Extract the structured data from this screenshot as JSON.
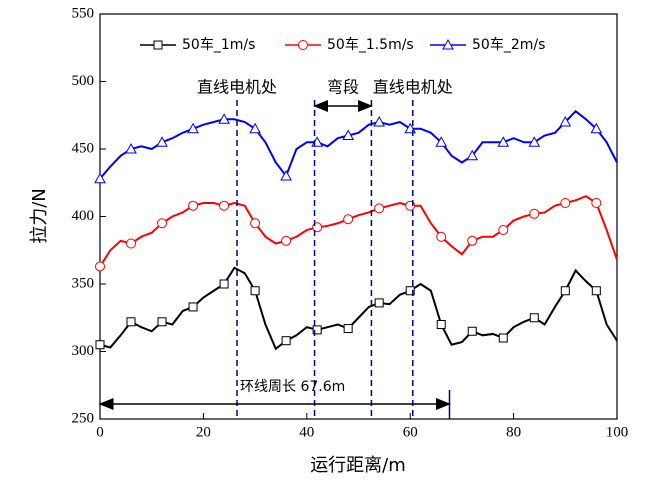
{
  "chart_data": {
    "type": "line",
    "xlabel": "运行距离/m",
    "ylabel": "拉力/N",
    "x": [
      0,
      2,
      4,
      6,
      8,
      10,
      12,
      14,
      16,
      18,
      20,
      22,
      24,
      26,
      28,
      30,
      32,
      34,
      36,
      38,
      40,
      42,
      44,
      46,
      48,
      50,
      52,
      54,
      56,
      58,
      60,
      62,
      64,
      66,
      68,
      70,
      72,
      74,
      76,
      78,
      80,
      82,
      84,
      86,
      88,
      90,
      92,
      94,
      96,
      98,
      100
    ],
    "series": [
      {
        "name": "50车_1m/s",
        "color": "#000000",
        "marker": "square",
        "values": [
          305,
          303,
          312,
          322,
          318,
          315,
          322,
          320,
          330,
          333,
          340,
          345,
          350,
          362,
          358,
          345,
          320,
          302,
          308,
          312,
          318,
          316,
          318,
          320,
          317,
          325,
          333,
          336,
          335,
          342,
          345,
          350,
          345,
          320,
          305,
          307,
          315,
          312,
          313,
          310,
          318,
          322,
          325,
          320,
          333,
          345,
          360,
          352,
          345,
          320,
          308
        ]
      },
      {
        "name": "50车_1.5m/s",
        "color": "#ff0000",
        "marker": "circle",
        "values": [
          363,
          375,
          382,
          380,
          385,
          388,
          395,
          400,
          403,
          408,
          410,
          410,
          408,
          410,
          408,
          395,
          385,
          380,
          382,
          385,
          390,
          392,
          393,
          395,
          398,
          401,
          403,
          406,
          408,
          410,
          408,
          408,
          395,
          385,
          378,
          372,
          382,
          385,
          385,
          390,
          397,
          400,
          402,
          403,
          408,
          410,
          412,
          415,
          410,
          390,
          368
        ]
      },
      {
        "name": "50车_2m/s",
        "color": "#0000ff",
        "marker": "triangle",
        "values": [
          428,
          437,
          445,
          450,
          452,
          450,
          455,
          458,
          462,
          465,
          468,
          470,
          472,
          472,
          470,
          465,
          455,
          440,
          430,
          450,
          455,
          455,
          452,
          458,
          460,
          462,
          468,
          470,
          468,
          470,
          465,
          465,
          462,
          455,
          445,
          440,
          445,
          455,
          455,
          455,
          458,
          455,
          455,
          460,
          462,
          470,
          478,
          472,
          465,
          455,
          440
        ]
      }
    ],
    "xlim": [
      0,
      100
    ],
    "xticks": [
      0,
      20,
      40,
      60,
      80,
      100
    ],
    "ylim": [
      250,
      550
    ],
    "yticks": [
      250,
      300,
      350,
      400,
      450,
      500,
      550
    ],
    "annotations": [
      "直线电机处",
      "弯段",
      "直线电机处",
      "环线周长 67.6m"
    ],
    "marker_lines": [
      26.5,
      41.5,
      52.5,
      60.5
    ],
    "ring_length": 67.6,
    "legend": "top"
  }
}
